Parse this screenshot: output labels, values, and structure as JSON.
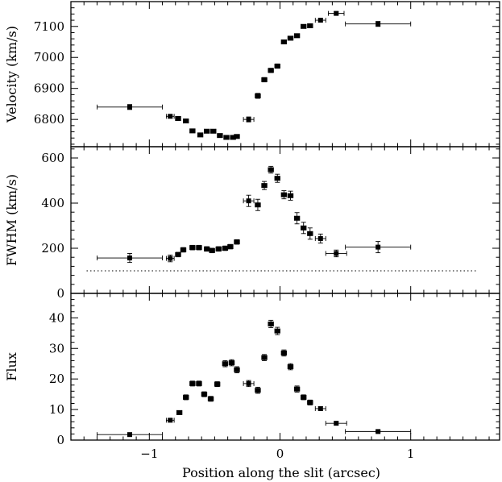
{
  "chart_data": {
    "type": "scatter",
    "xlabel": "Position along the slit (arcsec)",
    "xlim": [
      -1.6,
      1.68
    ],
    "xticks": [
      -1,
      0,
      1
    ],
    "xtick_labels": [
      "−1",
      "0",
      "1"
    ],
    "panels": [
      {
        "ylabel": "Velocity (km/s)",
        "ylim": [
          6712,
          7180
        ],
        "yticks": [
          6800,
          6900,
          7000,
          7100
        ],
        "ytick_labels": [
          "6800",
          "6900",
          "7000",
          "7100"
        ],
        "series": [
          {
            "points": [
              {
                "x": -1.15,
                "y": 6840,
                "xerr": 0.25,
                "yerr": 8
              },
              {
                "x": -0.84,
                "y": 6810,
                "xerr": 0.03,
                "yerr": 5
              },
              {
                "x": -0.78,
                "y": 6803,
                "xerr": 0.02,
                "yerr": 5
              },
              {
                "x": -0.72,
                "y": 6795,
                "xerr": 0.02,
                "yerr": 5
              },
              {
                "x": -0.67,
                "y": 6763,
                "xerr": 0.02,
                "yerr": 5
              },
              {
                "x": -0.61,
                "y": 6750,
                "xerr": 0.02,
                "yerr": 5
              },
              {
                "x": -0.56,
                "y": 6762,
                "xerr": 0.02,
                "yerr": 5
              },
              {
                "x": -0.51,
                "y": 6762,
                "xerr": 0.02,
                "yerr": 5
              },
              {
                "x": -0.46,
                "y": 6748,
                "xerr": 0.02,
                "yerr": 5
              },
              {
                "x": -0.41,
                "y": 6742,
                "xerr": 0.02,
                "yerr": 5
              },
              {
                "x": -0.36,
                "y": 6742,
                "xerr": 0.02,
                "yerr": 5
              },
              {
                "x": -0.33,
                "y": 6745,
                "xerr": 0.02,
                "yerr": 5
              },
              {
                "x": -0.24,
                "y": 6800,
                "xerr": 0.04,
                "yerr": 8
              },
              {
                "x": -0.17,
                "y": 6876,
                "xerr": 0.02,
                "yerr": 8
              },
              {
                "x": -0.12,
                "y": 6928,
                "xerr": 0.02,
                "yerr": 7
              },
              {
                "x": -0.07,
                "y": 6958,
                "xerr": 0.02,
                "yerr": 7
              },
              {
                "x": -0.02,
                "y": 6972,
                "xerr": 0.02,
                "yerr": 7
              },
              {
                "x": 0.03,
                "y": 7050,
                "xerr": 0.02,
                "yerr": 6
              },
              {
                "x": 0.08,
                "y": 7062,
                "xerr": 0.02,
                "yerr": 6
              },
              {
                "x": 0.13,
                "y": 7070,
                "xerr": 0.02,
                "yerr": 6
              },
              {
                "x": 0.18,
                "y": 7100,
                "xerr": 0.02,
                "yerr": 6
              },
              {
                "x": 0.23,
                "y": 7102,
                "xerr": 0.02,
                "yerr": 6
              },
              {
                "x": 0.31,
                "y": 7120,
                "xerr": 0.04,
                "yerr": 5
              },
              {
                "x": 0.43,
                "y": 7142,
                "xerr": 0.06,
                "yerr": 5
              },
              {
                "x": 0.75,
                "y": 7108,
                "xerr": 0.25,
                "yerr": 8
              }
            ]
          }
        ]
      },
      {
        "ylabel": "FWHM (km/s)",
        "ylim": [
          0,
          650
        ],
        "yticks": [
          0,
          200,
          400,
          600
        ],
        "ytick_labels": [
          "0",
          "200",
          "400",
          "600"
        ],
        "reference_line": {
          "y": 100,
          "x": [
            -1.48,
            1.5
          ],
          "style": "dotted"
        },
        "series": [
          {
            "points": [
              {
                "x": -1.15,
                "y": 157,
                "xerr": 0.25,
                "yerr": 20
              },
              {
                "x": -0.84,
                "y": 155,
                "xerr": 0.03,
                "yerr": 15
              },
              {
                "x": -0.78,
                "y": 172,
                "xerr": 0.02,
                "yerr": 10
              },
              {
                "x": -0.74,
                "y": 193,
                "xerr": 0.02,
                "yerr": 10
              },
              {
                "x": -0.67,
                "y": 203,
                "xerr": 0.02,
                "yerr": 10
              },
              {
                "x": -0.62,
                "y": 203,
                "xerr": 0.02,
                "yerr": 10
              },
              {
                "x": -0.56,
                "y": 197,
                "xerr": 0.02,
                "yerr": 10
              },
              {
                "x": -0.52,
                "y": 190,
                "xerr": 0.02,
                "yerr": 10
              },
              {
                "x": -0.47,
                "y": 197,
                "xerr": 0.02,
                "yerr": 10
              },
              {
                "x": -0.42,
                "y": 200,
                "xerr": 0.02,
                "yerr": 10
              },
              {
                "x": -0.38,
                "y": 207,
                "xerr": 0.02,
                "yerr": 10
              },
              {
                "x": -0.33,
                "y": 228,
                "xerr": 0.02,
                "yerr": 10
              },
              {
                "x": -0.24,
                "y": 410,
                "xerr": 0.04,
                "yerr": 25
              },
              {
                "x": -0.17,
                "y": 392,
                "xerr": 0.02,
                "yerr": 25
              },
              {
                "x": -0.12,
                "y": 478,
                "xerr": 0.02,
                "yerr": 18
              },
              {
                "x": -0.07,
                "y": 548,
                "xerr": 0.02,
                "yerr": 15
              },
              {
                "x": -0.02,
                "y": 510,
                "xerr": 0.02,
                "yerr": 18
              },
              {
                "x": 0.03,
                "y": 437,
                "xerr": 0.02,
                "yerr": 18
              },
              {
                "x": 0.08,
                "y": 433,
                "xerr": 0.02,
                "yerr": 20
              },
              {
                "x": 0.13,
                "y": 333,
                "xerr": 0.02,
                "yerr": 25
              },
              {
                "x": 0.18,
                "y": 290,
                "xerr": 0.02,
                "yerr": 25
              },
              {
                "x": 0.23,
                "y": 265,
                "xerr": 0.02,
                "yerr": 25
              },
              {
                "x": 0.31,
                "y": 243,
                "xerr": 0.04,
                "yerr": 20
              },
              {
                "x": 0.43,
                "y": 177,
                "xerr": 0.08,
                "yerr": 15
              },
              {
                "x": 0.75,
                "y": 205,
                "xerr": 0.25,
                "yerr": 25
              }
            ]
          }
        ]
      },
      {
        "ylabel": "Flux",
        "ylim": [
          0,
          48
        ],
        "yticks": [
          0,
          10,
          20,
          30,
          40
        ],
        "ytick_labels": [
          "0",
          "10",
          "20",
          "30",
          "40"
        ],
        "series": [
          {
            "points": [
              {
                "x": -1.15,
                "y": 1.8,
                "xerr": 0.25,
                "yerr": 0.3
              },
              {
                "x": -0.84,
                "y": 6.5,
                "xerr": 0.03,
                "yerr": 0.5
              },
              {
                "x": -0.77,
                "y": 9.0,
                "xerr": 0.02,
                "yerr": 0.6
              },
              {
                "x": -0.72,
                "y": 14.0,
                "xerr": 0.02,
                "yerr": 0.8
              },
              {
                "x": -0.67,
                "y": 18.5,
                "xerr": 0.02,
                "yerr": 0.8
              },
              {
                "x": -0.62,
                "y": 18.5,
                "xerr": 0.02,
                "yerr": 0.8
              },
              {
                "x": -0.58,
                "y": 15.0,
                "xerr": 0.02,
                "yerr": 0.8
              },
              {
                "x": -0.53,
                "y": 13.5,
                "xerr": 0.02,
                "yerr": 0.8
              },
              {
                "x": -0.48,
                "y": 18.3,
                "xerr": 0.02,
                "yerr": 0.8
              },
              {
                "x": -0.42,
                "y": 25.0,
                "xerr": 0.02,
                "yerr": 1.0
              },
              {
                "x": -0.37,
                "y": 25.3,
                "xerr": 0.02,
                "yerr": 1.0
              },
              {
                "x": -0.33,
                "y": 23.0,
                "xerr": 0.02,
                "yerr": 1.0
              },
              {
                "x": -0.24,
                "y": 18.5,
                "xerr": 0.04,
                "yerr": 1.0
              },
              {
                "x": -0.17,
                "y": 16.3,
                "xerr": 0.02,
                "yerr": 1.0
              },
              {
                "x": -0.12,
                "y": 27.0,
                "xerr": 0.02,
                "yerr": 1.0
              },
              {
                "x": -0.07,
                "y": 38.0,
                "xerr": 0.02,
                "yerr": 1.2
              },
              {
                "x": -0.02,
                "y": 35.7,
                "xerr": 0.02,
                "yerr": 1.2
              },
              {
                "x": 0.03,
                "y": 28.5,
                "xerr": 0.02,
                "yerr": 1.0
              },
              {
                "x": 0.08,
                "y": 24.0,
                "xerr": 0.02,
                "yerr": 1.0
              },
              {
                "x": 0.13,
                "y": 16.7,
                "xerr": 0.02,
                "yerr": 1.0
              },
              {
                "x": 0.18,
                "y": 14.0,
                "xerr": 0.02,
                "yerr": 0.8
              },
              {
                "x": 0.23,
                "y": 12.3,
                "xerr": 0.02,
                "yerr": 0.8
              },
              {
                "x": 0.31,
                "y": 10.3,
                "xerr": 0.04,
                "yerr": 0.6
              },
              {
                "x": 0.43,
                "y": 5.5,
                "xerr": 0.08,
                "yerr": 0.5
              },
              {
                "x": 0.75,
                "y": 2.8,
                "xerr": 0.25,
                "yerr": 0.3
              }
            ]
          }
        ]
      }
    ]
  }
}
